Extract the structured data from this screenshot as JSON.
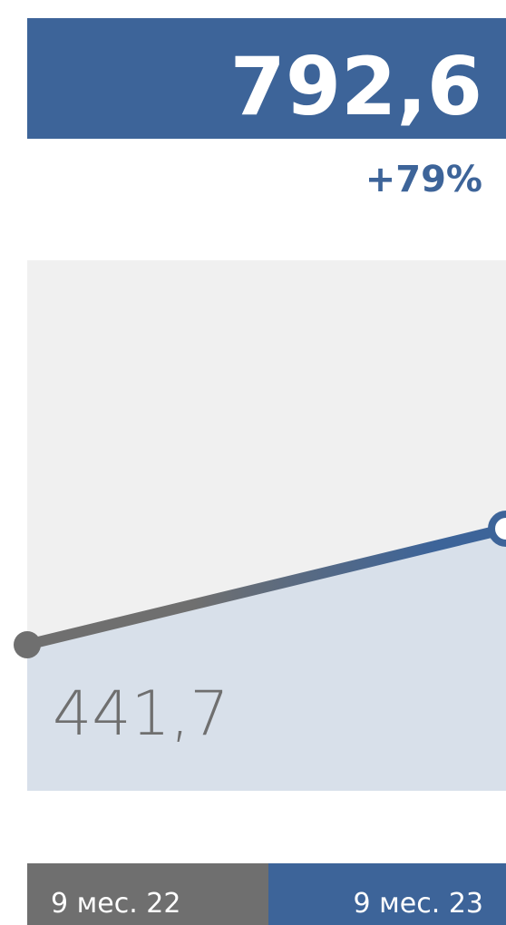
{
  "chart_data": {
    "type": "line",
    "categories": [
      "9 мес. 22",
      "9 мес. 23"
    ],
    "values": [
      441.7,
      792.6
    ],
    "value_labels": [
      "441,7",
      "792,6"
    ],
    "annotation": "+79%",
    "colors": [
      "#6f6f6f",
      "#3d6499"
    ]
  }
}
